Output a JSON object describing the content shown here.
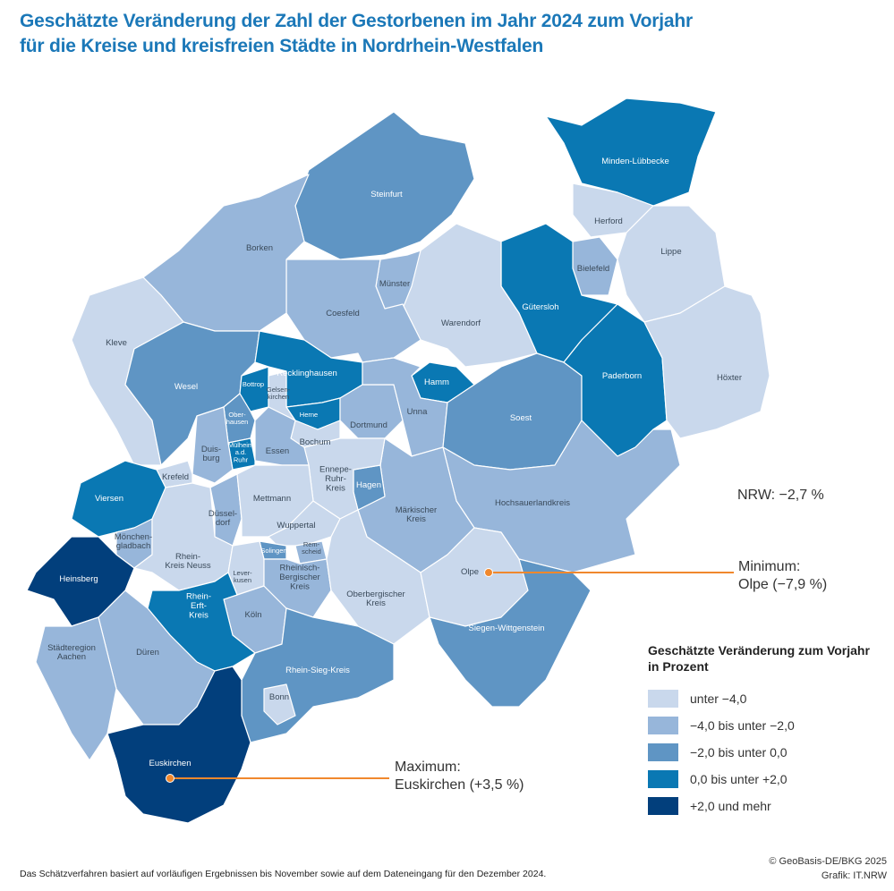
{
  "title": {
    "line1": "Geschätzte Veränderung der Zahl der Gestorbenen im Jahr 2024 zum Vorjahr",
    "line2": "für die Kreise und kreisfreien Städte in Nordrhein-Westfalen"
  },
  "nrw_total": "NRW: −2,7 %",
  "minimum": {
    "label": "Minimum:",
    "value": "Olpe (−7,9 %)"
  },
  "maximum": {
    "label": "Maximum:",
    "value": "Euskirchen (+3,5 %)"
  },
  "legend": {
    "title_line1": "Geschätzte Veränderung zum Vorjahr",
    "title_line2": "in Prozent",
    "classes": [
      {
        "label": "unter −4,0",
        "color": "#c9d8ec"
      },
      {
        "label": "−4,0 bis unter −2,0",
        "color": "#97b6da"
      },
      {
        "label": "−2,0 bis unter 0,0",
        "color": "#5f95c4"
      },
      {
        "label": "0,0 bis unter +2,0",
        "color": "#0a78b3"
      },
      {
        "label": "+2,0 und mehr",
        "color": "#023f7c"
      }
    ]
  },
  "districts": [
    {
      "id": "steinfurt",
      "name": "Steinfurt",
      "class": 2
    },
    {
      "id": "minden",
      "name": "Minden-Lübbecke",
      "class": 3
    },
    {
      "id": "herford",
      "name": "Herford",
      "class": 0
    },
    {
      "id": "lippe",
      "name": "Lippe",
      "class": 0
    },
    {
      "id": "bielefeld",
      "name": "Bielefeld",
      "class": 1
    },
    {
      "id": "guetersloh",
      "name": "Gütersloh",
      "class": 3
    },
    {
      "id": "warendorf",
      "name": "Warendorf",
      "class": 0
    },
    {
      "id": "muenster",
      "name": "Münster",
      "class": 1
    },
    {
      "id": "coesfeld",
      "name": "Coesfeld",
      "class": 1
    },
    {
      "id": "borken",
      "name": "Borken",
      "class": 1
    },
    {
      "id": "kleve",
      "name": "Kleve",
      "class": 0
    },
    {
      "id": "wesel",
      "name": "Wesel",
      "class": 2
    },
    {
      "id": "recklinghausen",
      "name": "Recklinghausen",
      "class": 3
    },
    {
      "id": "bottrop",
      "name": "Bottrop",
      "class": 3
    },
    {
      "id": "gelsenkirchen",
      "name": "Gelsen-kirchen",
      "class": 0
    },
    {
      "id": "herne",
      "name": "Herne",
      "class": 3
    },
    {
      "id": "oberhausen",
      "name": "Ober-hausen",
      "class": 2
    },
    {
      "id": "hamm",
      "name": "Hamm",
      "class": 3
    },
    {
      "id": "dortmund",
      "name": "Dortmund",
      "class": 1
    },
    {
      "id": "unna",
      "name": "Unna",
      "class": 1
    },
    {
      "id": "soest",
      "name": "Soest",
      "class": 2
    },
    {
      "id": "paderborn",
      "name": "Paderborn",
      "class": 3
    },
    {
      "id": "hoexter",
      "name": "Höxter",
      "class": 0
    },
    {
      "id": "hsk",
      "name": "Hochsauerlandkreis",
      "class": 1
    },
    {
      "id": "mk",
      "name": "Märkischer Kreis",
      "class": 1
    },
    {
      "id": "hagen",
      "name": "Hagen",
      "class": 2
    },
    {
      "id": "en",
      "name": "Ennepe-Ruhr-Kreis",
      "class": 0
    },
    {
      "id": "bochum",
      "name": "Bochum",
      "class": 0
    },
    {
      "id": "essen",
      "name": "Essen",
      "class": 1
    },
    {
      "id": "muelheim",
      "name": "Mülheim a.d. Ruhr",
      "class": 3
    },
    {
      "id": "duisburg",
      "name": "Duis-burg",
      "class": 1
    },
    {
      "id": "krefeld",
      "name": "Krefeld",
      "class": 0
    },
    {
      "id": "viersen",
      "name": "Viersen",
      "class": 3
    },
    {
      "id": "mg",
      "name": "Mönchen-gladbach",
      "class": 1
    },
    {
      "id": "heinsberg",
      "name": "Heinsberg",
      "class": 4
    },
    {
      "id": "duesseldorf",
      "name": "Düssel-dorf",
      "class": 1
    },
    {
      "id": "mettmann",
      "name": "Mettmann",
      "class": 0
    },
    {
      "id": "neuss",
      "name": "Rhein-Kreis Neuss",
      "class": 0
    },
    {
      "id": "wuppertal",
      "name": "Wuppertal",
      "class": 0
    },
    {
      "id": "solingen",
      "name": "Solingen",
      "class": 2
    },
    {
      "id": "remscheid",
      "name": "Rem-scheid",
      "class": 1
    },
    {
      "id": "leverkusen",
      "name": "Lever-kusen",
      "class": 0
    },
    {
      "id": "koeln",
      "name": "Köln",
      "class": 1
    },
    {
      "id": "rbk",
      "name": "Rheinisch-Bergischer Kreis",
      "class": 1
    },
    {
      "id": "obk",
      "name": "Oberbergischer Kreis",
      "class": 0
    },
    {
      "id": "olpe",
      "name": "Olpe",
      "class": 0
    },
    {
      "id": "siegen",
      "name": "Siegen-Wittgenstein",
      "class": 2
    },
    {
      "id": "rsk",
      "name": "Rhein-Sieg-Kreis",
      "class": 2
    },
    {
      "id": "bonn",
      "name": "Bonn",
      "class": 0
    },
    {
      "id": "erft",
      "name": "Rhein-Erft-Kreis",
      "class": 3
    },
    {
      "id": "dueren",
      "name": "Düren",
      "class": 1
    },
    {
      "id": "aachen",
      "name": "Städteregion Aachen",
      "class": 1
    },
    {
      "id": "euskirchen",
      "name": "Euskirchen",
      "class": 4
    }
  ],
  "footnote": "Das Schätzverfahren basiert auf vorläufigen Ergebnissen bis November sowie auf dem Dateneingang für den Dezember 2024.",
  "credits": {
    "copyright": "© GeoBasis-DE/BKG 2025",
    "graphic": "Grafik: IT.NRW"
  },
  "annotation_color": "#f0882d"
}
